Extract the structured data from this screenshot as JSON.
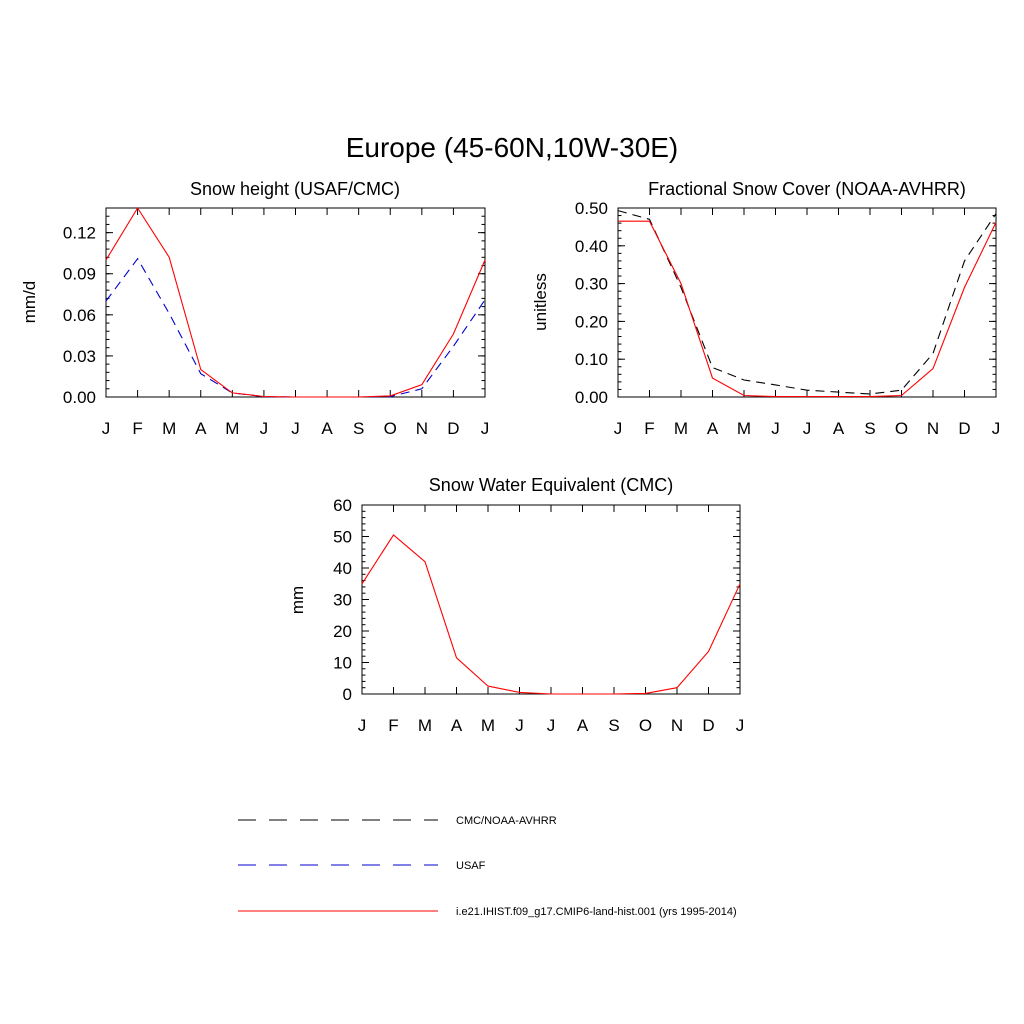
{
  "figure": {
    "title": "Europe (45-60N,10W-30E)"
  },
  "chart_data": [
    {
      "type": "line",
      "title": "Snow height (USAF/CMC)",
      "xlabel": "",
      "ylabel": "mm/d",
      "categories": [
        "J",
        "F",
        "M",
        "A",
        "M",
        "J",
        "J",
        "A",
        "S",
        "O",
        "N",
        "D",
        "J"
      ],
      "ylim": [
        0,
        0.138
      ],
      "yticks": [
        "0.00",
        "0.03",
        "0.06",
        "0.09",
        "0.12"
      ],
      "ytick_values": [
        0,
        0.03,
        0.06,
        0.09,
        0.12
      ],
      "grid": false,
      "series": [
        {
          "legend_ref": 0,
          "values": [
            0,
            0,
            0,
            0,
            0,
            0,
            0,
            0,
            0,
            0,
            0,
            0,
            0
          ],
          "color": "#000000",
          "dash": "dashed"
        },
        {
          "legend_ref": 1,
          "values": [
            0.07,
            0.101,
            0.061,
            0.017,
            0.003,
            0.0003,
            0,
            0,
            0,
            0.0003,
            0.006,
            0.037,
            0.071
          ],
          "color": "#0000cc",
          "dash": "dashed"
        },
        {
          "legend_ref": 2,
          "values": [
            0.1,
            0.138,
            0.102,
            0.02,
            0.003,
            0.0004,
            0,
            0,
            0,
            0.0008,
            0.009,
            0.046,
            0.1
          ],
          "color": "#ff0000",
          "dash": "solid"
        }
      ]
    },
    {
      "type": "line",
      "title": "Fractional Snow Cover (NOAA-AVHRR)",
      "xlabel": "",
      "ylabel": "unitless",
      "categories": [
        "J",
        "F",
        "M",
        "A",
        "M",
        "J",
        "J",
        "A",
        "S",
        "O",
        "N",
        "D",
        "J"
      ],
      "ylim": [
        0,
        0.5
      ],
      "yticks": [
        "0.00",
        "0.10",
        "0.20",
        "0.30",
        "0.40",
        "0.50"
      ],
      "ytick_values": [
        0,
        0.1,
        0.2,
        0.3,
        0.4,
        0.5
      ],
      "grid": false,
      "series": [
        {
          "legend_ref": 0,
          "values": [
            0.493,
            0.47,
            0.29,
            0.078,
            0.045,
            0.032,
            0.018,
            0.013,
            0.008,
            0.018,
            0.115,
            0.36,
            0.485
          ],
          "color": "#000000",
          "dash": "dashed"
        },
        {
          "legend_ref": 2,
          "values": [
            0.465,
            0.465,
            0.3,
            0.05,
            0.004,
            0.001,
            0.001,
            0.001,
            0.001,
            0.004,
            0.075,
            0.29,
            0.462
          ],
          "color": "#ff0000",
          "dash": "solid"
        }
      ]
    },
    {
      "type": "line",
      "title": "Snow Water Equivalent (CMC)",
      "xlabel": "",
      "ylabel": "mm",
      "categories": [
        "J",
        "F",
        "M",
        "A",
        "M",
        "J",
        "J",
        "A",
        "S",
        "O",
        "N",
        "D",
        "J"
      ],
      "ylim": [
        0,
        60
      ],
      "yticks": [
        "0",
        "10",
        "20",
        "30",
        "40",
        "50",
        "60"
      ],
      "ytick_values": [
        0,
        10,
        20,
        30,
        40,
        50,
        60
      ],
      "grid": false,
      "series": [
        {
          "legend_ref": 0,
          "values": [
            0,
            0,
            0,
            0,
            0,
            0,
            0,
            0,
            0,
            0,
            0,
            0,
            0
          ],
          "color": "#000000",
          "dash": "dashed"
        },
        {
          "legend_ref": 2,
          "values": [
            35.0,
            50.5,
            42.0,
            11.5,
            2.5,
            0.5,
            0,
            0,
            0,
            0.2,
            2.0,
            13.5,
            35.0
          ],
          "color": "#ff0000",
          "dash": "solid"
        }
      ]
    }
  ],
  "legend": {
    "position": "bottom",
    "items": [
      {
        "label": "CMC/NOAA-AVHRR",
        "color": "#000000",
        "dash": "dashed"
      },
      {
        "label": "USAF",
        "color": "#0000cc",
        "dash": "dashed"
      },
      {
        "label": "i.e21.IHIST.f09_g17.CMIP6-land-hist.001 (yrs 1995-2014)",
        "color": "#ff0000",
        "dash": "solid"
      }
    ]
  }
}
